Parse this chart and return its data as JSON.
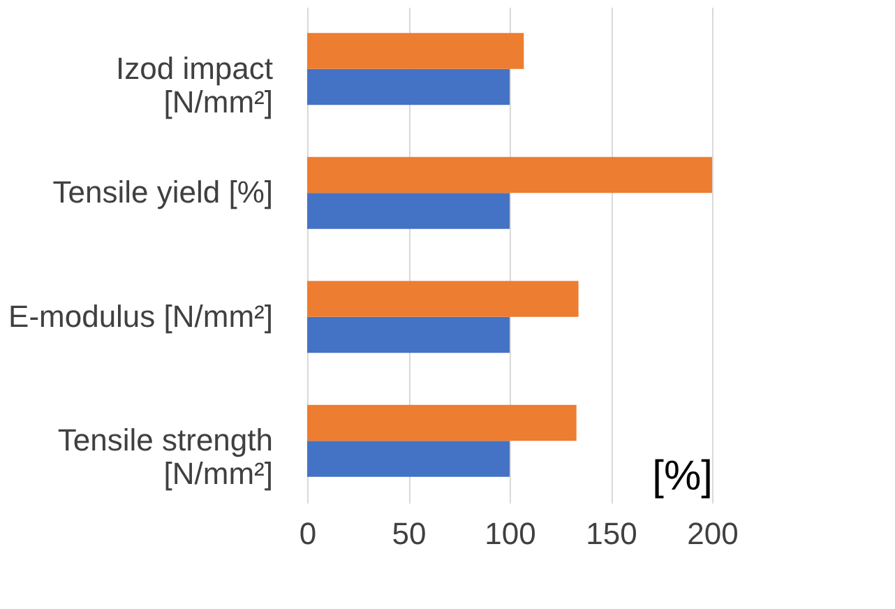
{
  "chart_data": {
    "type": "bar",
    "orientation": "horizontal",
    "xlabel": "[%]",
    "categories": [
      "Izod impact [N/mm²]",
      "Tensile yield [%]",
      "E-modulus [N/mm²]",
      "Tensile strength [N/mm²]"
    ],
    "series": [
      {
        "color": "#4472c4",
        "values": [
          100,
          100,
          100,
          100
        ]
      },
      {
        "color": "#ed7d31",
        "values": [
          107,
          200,
          134,
          133
        ]
      }
    ],
    "xlim": [
      0,
      200
    ],
    "xticks": [
      0,
      50,
      100,
      150,
      200
    ],
    "grid": "x",
    "legend": false
  }
}
